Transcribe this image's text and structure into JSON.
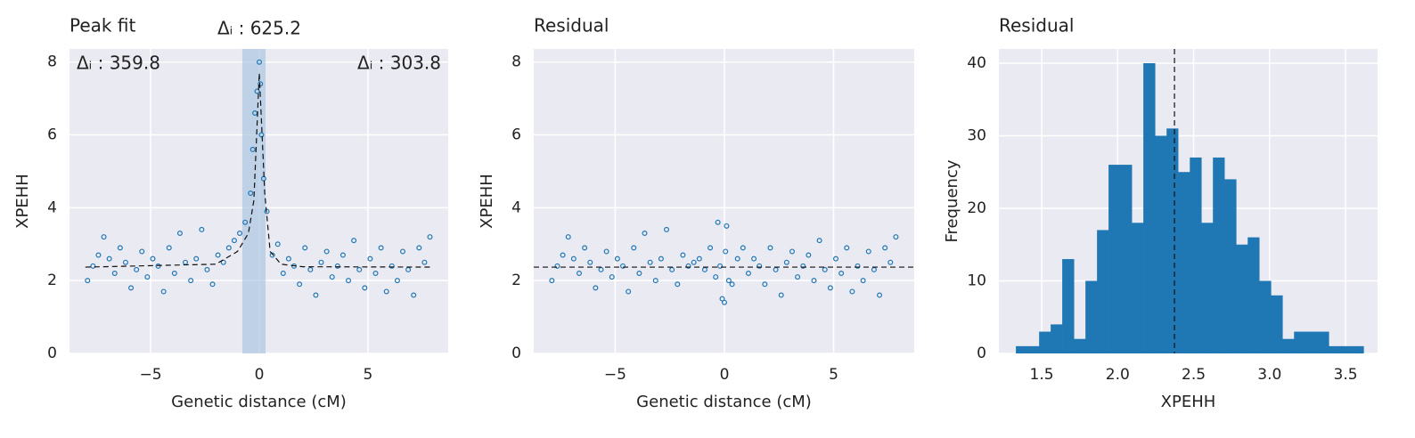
{
  "chart_data": [
    {
      "type": "scatter",
      "title": "Peak fit",
      "xlabel": "Genetic distance (cM)",
      "ylabel": "XPEHH",
      "xlim": [
        -8.73,
        8.69
      ],
      "ylim": [
        0,
        8.36
      ],
      "xticks": [
        {
          "value": -5,
          "label": "−5"
        },
        0,
        5
      ],
      "yticks": [
        0,
        2,
        4,
        6,
        8
      ],
      "grid": true,
      "color": "#1f77b4",
      "x": [
        -7.9,
        -7.65,
        -7.4,
        -7.15,
        -6.9,
        -6.65,
        -6.4,
        -6.15,
        -5.9,
        -5.65,
        -5.4,
        -5.15,
        -4.9,
        -4.65,
        -4.4,
        -4.15,
        -3.9,
        -3.65,
        -3.4,
        -3.15,
        -2.9,
        -2.65,
        -2.4,
        -2.15,
        -1.9,
        -1.65,
        -1.4,
        -1.15,
        -0.9,
        -0.65,
        -0.4,
        -0.3,
        -0.2,
        -0.1,
        0,
        0.05,
        0.1,
        0.2,
        0.35,
        0.6,
        0.85,
        1.1,
        1.35,
        1.6,
        1.85,
        2.1,
        2.35,
        2.6,
        2.85,
        3.1,
        3.35,
        3.6,
        3.85,
        4.1,
        4.35,
        4.6,
        4.85,
        5.1,
        5.35,
        5.6,
        5.85,
        6.1,
        6.35,
        6.6,
        6.85,
        7.1,
        7.35,
        7.6,
        7.85
      ],
      "values": [
        2.0,
        2.4,
        2.7,
        3.2,
        2.6,
        2.2,
        2.9,
        2.5,
        1.8,
        2.3,
        2.8,
        2.1,
        2.6,
        2.4,
        1.7,
        2.9,
        2.2,
        3.3,
        2.5,
        2.0,
        2.6,
        3.4,
        2.3,
        1.9,
        2.7,
        2.5,
        2.9,
        3.1,
        3.3,
        3.6,
        4.4,
        5.6,
        6.6,
        7.2,
        8.0,
        7.4,
        6.0,
        4.8,
        3.9,
        2.7,
        3.0,
        2.2,
        2.6,
        2.4,
        1.9,
        2.9,
        2.3,
        1.6,
        2.5,
        2.8,
        2.1,
        2.4,
        2.7,
        2.0,
        3.1,
        2.3,
        1.8,
        2.6,
        2.2,
        2.9,
        1.7,
        2.4,
        2.0,
        2.8,
        2.3,
        1.6,
        2.9,
        2.5,
        3.2
      ],
      "fit": {
        "x": [
          -8,
          -2,
          -1,
          -0.5,
          -0.25,
          0,
          0.25,
          0.5,
          1,
          2,
          8
        ],
        "values": [
          2.37,
          2.45,
          2.8,
          3.3,
          4.2,
          7.7,
          4.4,
          2.8,
          2.45,
          2.38,
          2.37
        ]
      },
      "span": [
        -0.78,
        0.29
      ],
      "annotations": [
        "Δᵢ : 625.2",
        "Δᵢ : 359.8",
        "Δᵢ : 303.8"
      ]
    },
    {
      "type": "scatter",
      "title": "Residual",
      "xlabel": "Genetic distance (cM)",
      "ylabel": "XPEHH",
      "xlim": [
        -8.73,
        8.69
      ],
      "ylim": [
        0,
        8.36
      ],
      "xticks": [
        {
          "value": -5,
          "label": "−5"
        },
        0,
        5
      ],
      "yticks": [
        0,
        2,
        4,
        6,
        8
      ],
      "grid": true,
      "color": "#1f77b4",
      "x": [
        -7.9,
        -7.65,
        -7.4,
        -7.15,
        -6.9,
        -6.65,
        -6.4,
        -6.15,
        -5.9,
        -5.65,
        -5.4,
        -5.15,
        -4.9,
        -4.65,
        -4.4,
        -4.15,
        -3.9,
        -3.65,
        -3.4,
        -3.15,
        -2.9,
        -2.65,
        -2.4,
        -2.15,
        -1.9,
        -1.65,
        -1.4,
        -1.15,
        -0.9,
        -0.65,
        -0.4,
        -0.3,
        -0.2,
        -0.1,
        0,
        0.05,
        0.1,
        0.2,
        0.35,
        0.6,
        0.85,
        1.1,
        1.35,
        1.6,
        1.85,
        2.1,
        2.35,
        2.6,
        2.85,
        3.1,
        3.35,
        3.6,
        3.85,
        4.1,
        4.35,
        4.6,
        4.85,
        5.1,
        5.35,
        5.6,
        5.85,
        6.1,
        6.35,
        6.6,
        6.85,
        7.1,
        7.35,
        7.6,
        7.85
      ],
      "values": [
        2.0,
        2.4,
        2.7,
        3.2,
        2.6,
        2.2,
        2.9,
        2.5,
        1.8,
        2.3,
        2.8,
        2.1,
        2.6,
        2.4,
        1.7,
        2.9,
        2.2,
        3.3,
        2.5,
        2.0,
        2.6,
        3.4,
        2.3,
        1.9,
        2.7,
        2.4,
        2.5,
        2.6,
        2.3,
        2.9,
        2.1,
        3.6,
        2.4,
        1.5,
        1.4,
        2.8,
        3.5,
        2.0,
        1.9,
        2.6,
        2.9,
        2.2,
        2.6,
        2.4,
        1.9,
        2.9,
        2.3,
        1.6,
        2.5,
        2.8,
        2.1,
        2.4,
        2.7,
        2.0,
        3.1,
        2.3,
        1.8,
        2.6,
        2.2,
        2.9,
        1.7,
        2.4,
        2.0,
        2.8,
        2.3,
        1.6,
        2.9,
        2.5,
        3.2
      ],
      "hline": 2.37
    },
    {
      "type": "histogram",
      "title": "Residual",
      "xlabel": "XPEHH",
      "ylabel": "Frequency",
      "xlim": [
        1.218,
        3.711
      ],
      "ylim": [
        0,
        41.96
      ],
      "xticks": [
        1.5,
        {
          "value": 2,
          "label": "2.0"
        },
        2.5,
        {
          "value": 3,
          "label": "3.0"
        },
        3.5
      ],
      "yticks": [
        0,
        10,
        20,
        30,
        40
      ],
      "grid": true,
      "color": "#1f77b4",
      "bins": [
        1.33,
        1.406,
        1.483,
        1.559,
        1.635,
        1.712,
        1.788,
        1.864,
        1.94,
        2.017,
        2.093,
        2.169,
        2.246,
        2.322,
        2.398,
        2.475,
        2.551,
        2.627,
        2.703,
        2.78,
        2.856,
        2.932,
        3.009,
        3.085,
        3.161,
        3.238,
        3.314,
        3.39,
        3.466,
        3.543,
        3.619
      ],
      "counts": [
        1,
        1,
        3,
        4,
        13,
        2,
        10,
        17,
        26,
        26,
        18,
        40,
        30,
        31,
        25,
        27,
        18,
        27,
        24,
        15,
        16,
        10,
        8,
        2,
        3,
        3,
        3,
        1,
        1,
        1
      ],
      "vline": 2.374
    }
  ]
}
